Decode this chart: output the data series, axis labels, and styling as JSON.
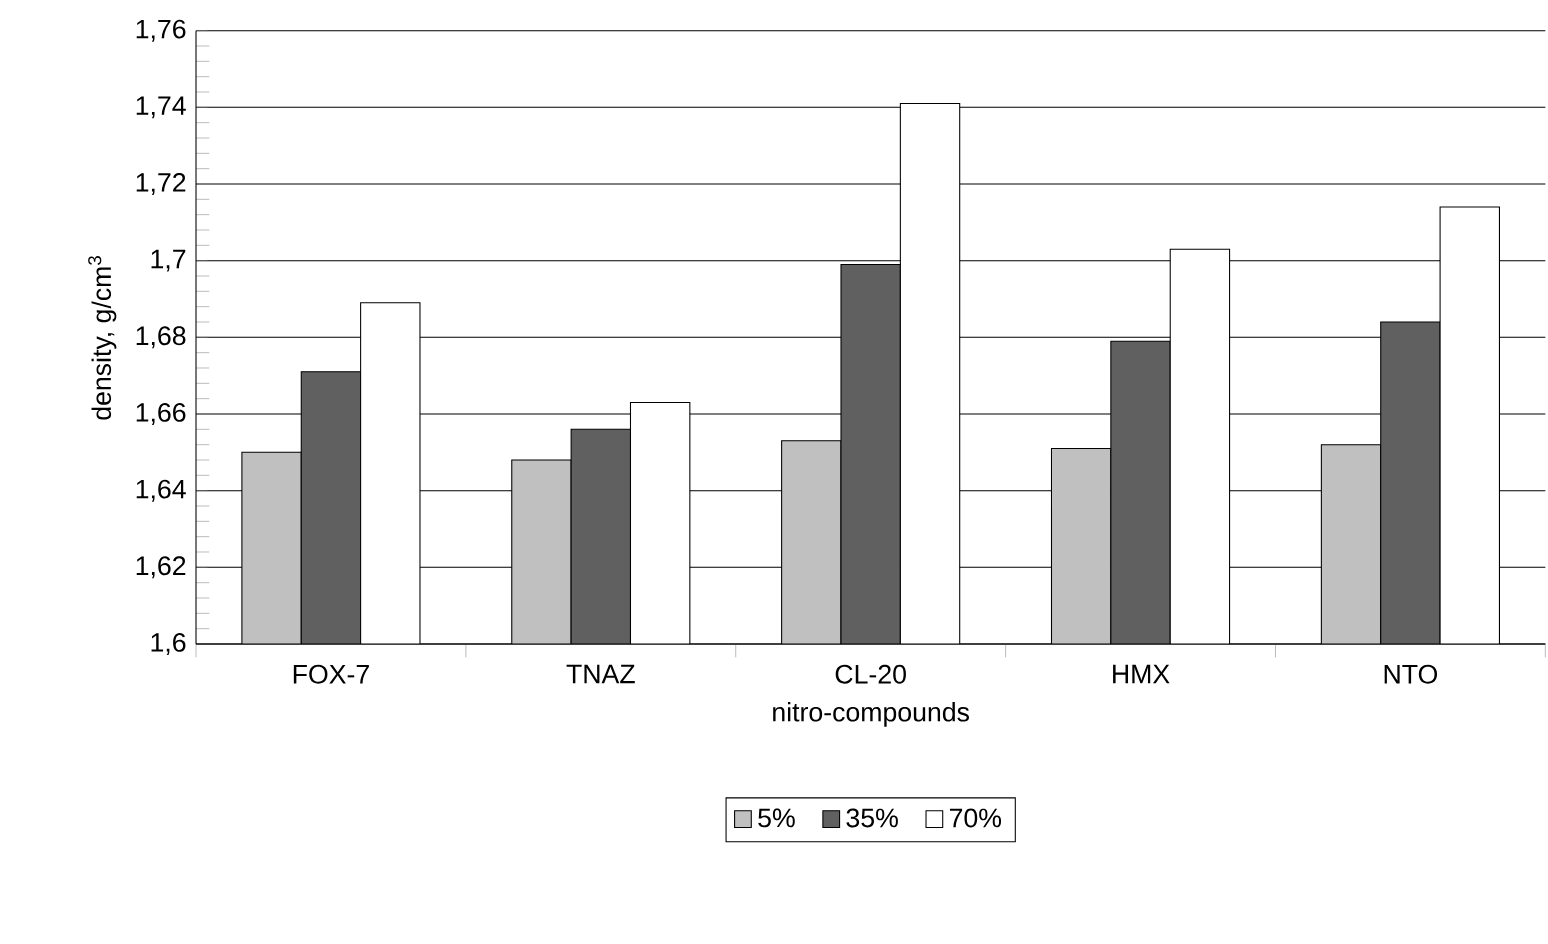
{
  "chart_data": {
    "type": "bar",
    "xlabel": "nitro-compounds",
    "ylabel": "density, g/cm$^{3}$",
    "categories": [
      "FOX-7",
      "TNAZ",
      "CL-20",
      "HMX",
      "NTO"
    ],
    "series": [
      {
        "name": "5%",
        "color": "#c0c0c0",
        "values": [
          1.65,
          1.648,
          1.653,
          1.651,
          1.652
        ]
      },
      {
        "name": "35%",
        "color": "#606060",
        "values": [
          1.671,
          1.656,
          1.699,
          1.679,
          1.684
        ]
      },
      {
        "name": "70%",
        "color": "#ffffff",
        "values": [
          1.689,
          1.663,
          1.741,
          1.703,
          1.714
        ]
      }
    ],
    "ylim": [
      1.6,
      1.76
    ],
    "yticks": [
      {
        "value": 1.6,
        "label": "1,6"
      },
      {
        "value": 1.62,
        "label": "1,62"
      },
      {
        "value": 1.64,
        "label": "1,64"
      },
      {
        "value": 1.66,
        "label": "1,66"
      },
      {
        "value": 1.68,
        "label": "1,68"
      },
      {
        "value": 1.7,
        "label": "1,7"
      },
      {
        "value": 1.72,
        "label": "1,72"
      },
      {
        "value": 1.74,
        "label": "1,74"
      },
      {
        "value": 1.76,
        "label": "1,76"
      }
    ],
    "grid": "y",
    "legend": "bottom"
  }
}
